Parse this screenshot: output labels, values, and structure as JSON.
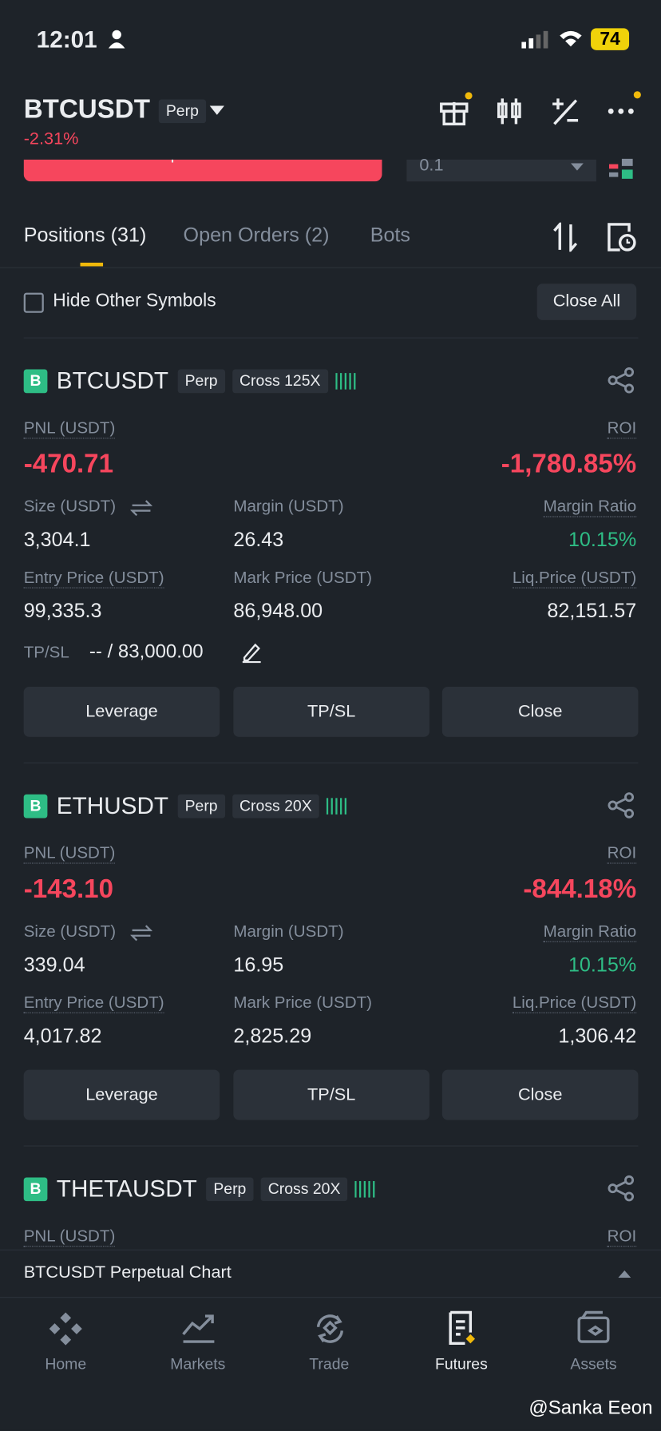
{
  "status_bar": {
    "time": "12:01",
    "battery": "74"
  },
  "header": {
    "symbol": "BTCUSDT",
    "tag": "Perp",
    "change": "-2.31%"
  },
  "order_strip": {
    "button": "Open Short",
    "amount": "0.1"
  },
  "tabs": [
    "Positions (31)",
    "Open Orders (2)",
    "Bots"
  ],
  "filter": {
    "checkbox": "Hide Other Symbols",
    "close_all": "Close All"
  },
  "positions": [
    {
      "badge": "B",
      "symbol": "BTCUSDT",
      "type": "Perp",
      "mode": "Cross 125X",
      "pnl_label": "PNL (USDT)",
      "pnl": "-470.71",
      "roi_label": "ROI",
      "roi": "-1,780.85%",
      "size_label": "Size (USDT)",
      "size": "3,304.1",
      "margin_label": "Margin (USDT)",
      "margin": "26.43",
      "ratio_label": "Margin Ratio",
      "ratio": "10.15%",
      "entry_label": "Entry Price (USDT)",
      "entry": "99,335.3",
      "mark_label": "Mark Price (USDT)",
      "mark": "86,948.00",
      "liq_label": "Liq.Price (USDT)",
      "liq": "82,151.57",
      "tpsl_label": "TP/SL",
      "tpsl": "-- / 83,000.00",
      "actions": [
        "Leverage",
        "TP/SL",
        "Close"
      ]
    },
    {
      "badge": "B",
      "symbol": "ETHUSDT",
      "type": "Perp",
      "mode": "Cross 20X",
      "pnl_label": "PNL (USDT)",
      "pnl": "-143.10",
      "roi_label": "ROI",
      "roi": "-844.18%",
      "size_label": "Size (USDT)",
      "size": "339.04",
      "margin_label": "Margin (USDT)",
      "margin": "16.95",
      "ratio_label": "Margin Ratio",
      "ratio": "10.15%",
      "entry_label": "Entry Price (USDT)",
      "entry": "4,017.82",
      "mark_label": "Mark Price (USDT)",
      "mark": "2,825.29",
      "liq_label": "Liq.Price (USDT)",
      "liq": "1,306.42",
      "actions": [
        "Leverage",
        "TP/SL",
        "Close"
      ]
    },
    {
      "badge": "B",
      "symbol": "THETAUSDT",
      "type": "Perp",
      "mode": "Cross 20X",
      "pnl_label": "PNL (USDT)",
      "roi_label": "ROI"
    }
  ],
  "chart_bar": {
    "label": "BTCUSDT Perpetual  Chart"
  },
  "nav": [
    "Home",
    "Markets",
    "Trade",
    "Futures",
    "Assets"
  ],
  "watermark": "@Sanka Eeon"
}
